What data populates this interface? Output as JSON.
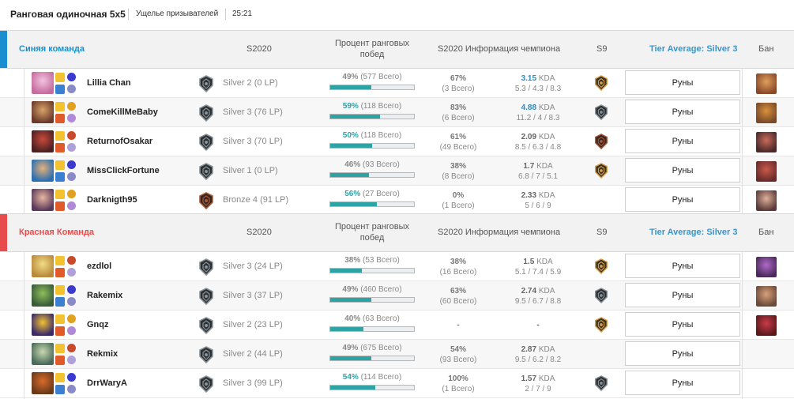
{
  "header": {
    "queue": "Ранговая одиночная 5x5",
    "map": "Ущелье призывателей",
    "duration": "25:21"
  },
  "columns": {
    "season": "S2020",
    "ranked_winrate": "Процент ранговых побед",
    "champ_info": "S2020 Информация чемпиона",
    "prev_season": "S9",
    "ban": "Бан",
    "runes_button": "Руны"
  },
  "colors": {
    "blue_team": "#1a8fd0",
    "red_team": "#e84b4b",
    "accent": "#2da3a6",
    "tier": "#3a95c9"
  },
  "teams": [
    {
      "name": "Синяя команда",
      "tier_average": "Tier Average: Silver 3",
      "players": [
        {
          "name": "Lillia Chan",
          "rank": "Silver 2 (0 LP)",
          "wr_pct": "49%",
          "wr_total": "(577 Всего)",
          "winrate": 49,
          "champ_wr": "67%",
          "champ_games": "(3 Всего)",
          "kda": "3.15",
          "kda_label": "KDA",
          "kda_detail": "5.3 / 4.3 / 8.3",
          "champ_icon": "lillia-icon",
          "emblem": "silver-emblem-icon",
          "s9": "gold-emblem-icon",
          "ban": "champion-ban-icon"
        },
        {
          "name": "ComeKillMeBaby",
          "rank": "Silver 3 (76 LP)",
          "wr_pct": "59%",
          "wr_total": "(118 Всего)",
          "winrate": 59,
          "champ_wr": "83%",
          "champ_games": "(6 Всего)",
          "kda": "4.88",
          "kda_label": "KDA",
          "kda_detail": "11.2 / 4 / 8.3",
          "champ_icon": "champion-icon",
          "emblem": "silver-emblem-icon",
          "s9": "silver-emblem-icon",
          "ban": "champion-ban-icon"
        },
        {
          "name": "ReturnofOsakar",
          "rank": "Silver 3 (70 LP)",
          "wr_pct": "50%",
          "wr_total": "(118 Всего)",
          "winrate": 50,
          "champ_wr": "61%",
          "champ_games": "(49 Всего)",
          "kda": "2.09",
          "kda_label": "KDA",
          "kda_detail": "8.5 / 6.3 / 4.8",
          "champ_icon": "champion-icon",
          "emblem": "silver-emblem-icon",
          "s9": "bronze-emblem-icon",
          "ban": "champion-ban-icon"
        },
        {
          "name": "MissClickFortune",
          "rank": "Silver 1 (0 LP)",
          "wr_pct": "46%",
          "wr_total": "(93 Всего)",
          "winrate": 46,
          "champ_wr": "38%",
          "champ_games": "(8 Всего)",
          "kda": "1.7",
          "kda_label": "KDA",
          "kda_detail": "6.8 / 7 / 5.1",
          "champ_icon": "champion-icon",
          "emblem": "silver-emblem-icon",
          "s9": "gold-emblem-icon",
          "ban": "champion-ban-icon"
        },
        {
          "name": "Darknigth95",
          "rank": "Bronze 4 (91 LP)",
          "wr_pct": "56%",
          "wr_total": "(27 Всего)",
          "winrate": 56,
          "champ_wr": "0%",
          "champ_games": "(1 Всего)",
          "kda": "2.33",
          "kda_label": "KDA",
          "kda_detail": "5 / 6 / 9",
          "champ_icon": "champion-icon",
          "emblem": "bronze-emblem-icon",
          "s9": "",
          "ban": "champion-ban-icon"
        }
      ]
    },
    {
      "name": "Красная Команда",
      "tier_average": "Tier Average: Silver 3",
      "players": [
        {
          "name": "ezdlol",
          "rank": "Silver 3 (24 LP)",
          "wr_pct": "38%",
          "wr_total": "(53 Всего)",
          "winrate": 38,
          "champ_wr": "38%",
          "champ_games": "(16 Всего)",
          "kda": "1.5",
          "kda_label": "KDA",
          "kda_detail": "5.1 / 7.4 / 5.9",
          "champ_icon": "champion-icon",
          "emblem": "silver-emblem-icon",
          "s9": "gold-emblem-icon",
          "ban": "champion-ban-icon"
        },
        {
          "name": "Rakemix",
          "rank": "Silver 3 (37 LP)",
          "wr_pct": "49%",
          "wr_total": "(460 Всего)",
          "winrate": 49,
          "champ_wr": "63%",
          "champ_games": "(60 Всего)",
          "kda": "2.74",
          "kda_label": "KDA",
          "kda_detail": "9.5 / 6.7 / 8.8",
          "champ_icon": "champion-icon",
          "emblem": "silver-emblem-icon",
          "s9": "silver-emblem-icon",
          "ban": "champion-ban-icon"
        },
        {
          "name": "Gnqz",
          "rank": "Silver 2 (23 LP)",
          "wr_pct": "40%",
          "wr_total": "(63 Всего)",
          "winrate": 40,
          "champ_wr": "-",
          "champ_games": "",
          "kda": "-",
          "kda_label": "",
          "kda_detail": "",
          "champ_icon": "champion-icon",
          "emblem": "silver-emblem-icon",
          "s9": "gold-emblem-icon",
          "ban": "champion-ban-icon"
        },
        {
          "name": "Rekmix",
          "rank": "Silver 2 (44 LP)",
          "wr_pct": "49%",
          "wr_total": "(675 Всего)",
          "winrate": 49,
          "champ_wr": "54%",
          "champ_games": "(93 Всего)",
          "kda": "2.87",
          "kda_label": "KDA",
          "kda_detail": "9.5 / 6.2 / 8.2",
          "champ_icon": "champion-icon",
          "emblem": "silver-emblem-icon",
          "s9": "",
          "ban": ""
        },
        {
          "name": "DrrWaryA",
          "rank": "Silver 3 (99 LP)",
          "wr_pct": "54%",
          "wr_total": "(114 Всего)",
          "winrate": 54,
          "champ_wr": "100%",
          "champ_games": "(1 Всего)",
          "kda": "1.57",
          "kda_label": "KDA",
          "kda_detail": "2 / 7 / 9",
          "champ_icon": "champion-icon",
          "emblem": "silver-emblem-icon",
          "s9": "silver-emblem-icon",
          "ban": ""
        }
      ]
    }
  ]
}
